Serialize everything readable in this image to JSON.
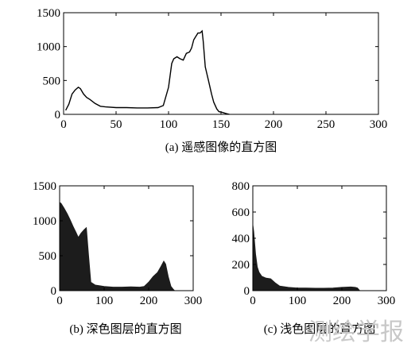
{
  "watermark": "测绘学报",
  "chart_data": [
    {
      "type": "area",
      "style": "line",
      "caption": "(a) 遥感图像的直方图",
      "xlim": [
        0,
        300
      ],
      "ylim": [
        0,
        1500
      ],
      "xticks": [
        0,
        50,
        100,
        150,
        200,
        250,
        300
      ],
      "yticks": [
        0,
        500,
        1000,
        1500
      ],
      "grid": false,
      "color": "#000000",
      "x": [
        2,
        5,
        8,
        11,
        14,
        16,
        19,
        22,
        25,
        30,
        35,
        40,
        50,
        60,
        70,
        80,
        90,
        95,
        100,
        103,
        105,
        108,
        111,
        114,
        117,
        120,
        122,
        124,
        126,
        128,
        130,
        132,
        133,
        135,
        138,
        141,
        143,
        146,
        148,
        151,
        155,
        158
      ],
      "y": [
        60,
        150,
        300,
        360,
        400,
        380,
        300,
        250,
        220,
        160,
        120,
        110,
        100,
        100,
        95,
        95,
        100,
        130,
        400,
        750,
        820,
        850,
        820,
        800,
        900,
        920,
        980,
        1100,
        1150,
        1200,
        1200,
        1230,
        1080,
        700,
        500,
        300,
        180,
        80,
        40,
        30,
        10,
        0
      ]
    },
    {
      "type": "area",
      "style": "filled",
      "caption": "(b) 深色图层的直方图",
      "xlim": [
        0,
        300
      ],
      "ylim": [
        0,
        1500
      ],
      "xticks": [
        0,
        100,
        200,
        300
      ],
      "yticks": [
        0,
        500,
        1000,
        1500
      ],
      "grid": false,
      "color": "#1c1c1c",
      "x": [
        0,
        3,
        10,
        17,
        23,
        30,
        37,
        42,
        48,
        55,
        60,
        65,
        70,
        80,
        100,
        120,
        140,
        160,
        180,
        190,
        200,
        210,
        220,
        228,
        234,
        238,
        244,
        250,
        255,
        258
      ],
      "y": [
        1260,
        1250,
        1180,
        1100,
        1020,
        920,
        830,
        760,
        820,
        870,
        900,
        500,
        120,
        80,
        60,
        50,
        50,
        55,
        50,
        60,
        120,
        200,
        260,
        350,
        420,
        380,
        200,
        60,
        20,
        0
      ]
    },
    {
      "type": "area",
      "style": "filled",
      "caption": "(c) 浅色图层的直方图",
      "xlim": [
        0,
        300
      ],
      "ylim": [
        0,
        800
      ],
      "xticks": [
        0,
        100,
        200,
        300
      ],
      "yticks": [
        0,
        200,
        400,
        600,
        800
      ],
      "grid": false,
      "color": "#1c1c1c",
      "x": [
        0,
        2,
        6,
        10,
        14,
        20,
        30,
        40,
        50,
        60,
        80,
        100,
        120,
        140,
        160,
        180,
        200,
        220,
        230,
        235,
        240
      ],
      "y": [
        500,
        450,
        280,
        180,
        140,
        110,
        95,
        90,
        60,
        35,
        25,
        20,
        20,
        18,
        18,
        20,
        25,
        28,
        25,
        20,
        0
      ]
    }
  ]
}
